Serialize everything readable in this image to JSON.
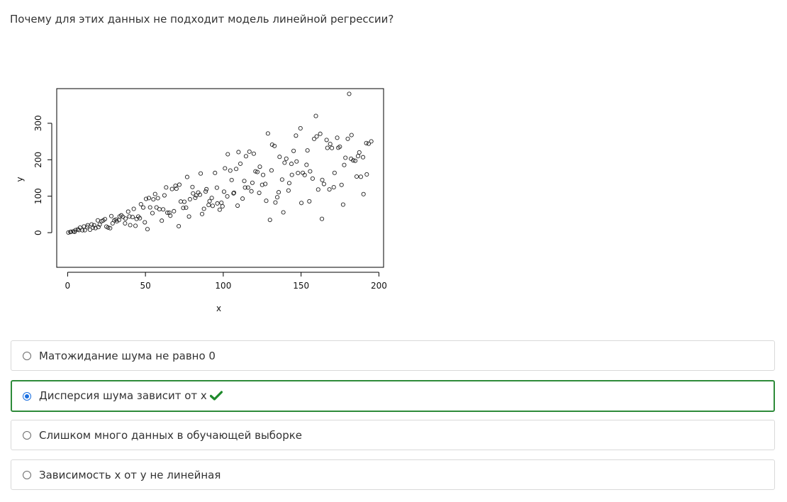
{
  "question": {
    "text": "Почему для этих данных не подходит модель линейной регрессии?"
  },
  "chart_data": {
    "type": "scatter",
    "xlabel": "x",
    "ylabel": "y",
    "xlim": [
      -7,
      203
    ],
    "ylim": [
      -95,
      395
    ],
    "xticks": [
      0,
      50,
      100,
      150,
      200
    ],
    "yticks": [
      0,
      100,
      200,
      300
    ],
    "grid": false,
    "points_description": "heteroscedastic: y ≈ 1.2·x with noise spread growing with x",
    "n": 200,
    "x": [],
    "y": []
  },
  "options": [
    {
      "label": "Матожидание шума не равно 0",
      "selected": false
    },
    {
      "label": "Дисперсия шума зависит от x",
      "selected": true,
      "correct": true
    },
    {
      "label": "Слишком много данных в обучающей выборке",
      "selected": false
    },
    {
      "label": "Зависимость x от y не линейная",
      "selected": false
    }
  ],
  "colors": {
    "correct_border": "#2e8b3a",
    "check_mark": "#1f8a2c",
    "radio_selected": "#1a6fe0",
    "option_border": "#d9d9d9"
  },
  "icons": {
    "check": "check-icon"
  }
}
